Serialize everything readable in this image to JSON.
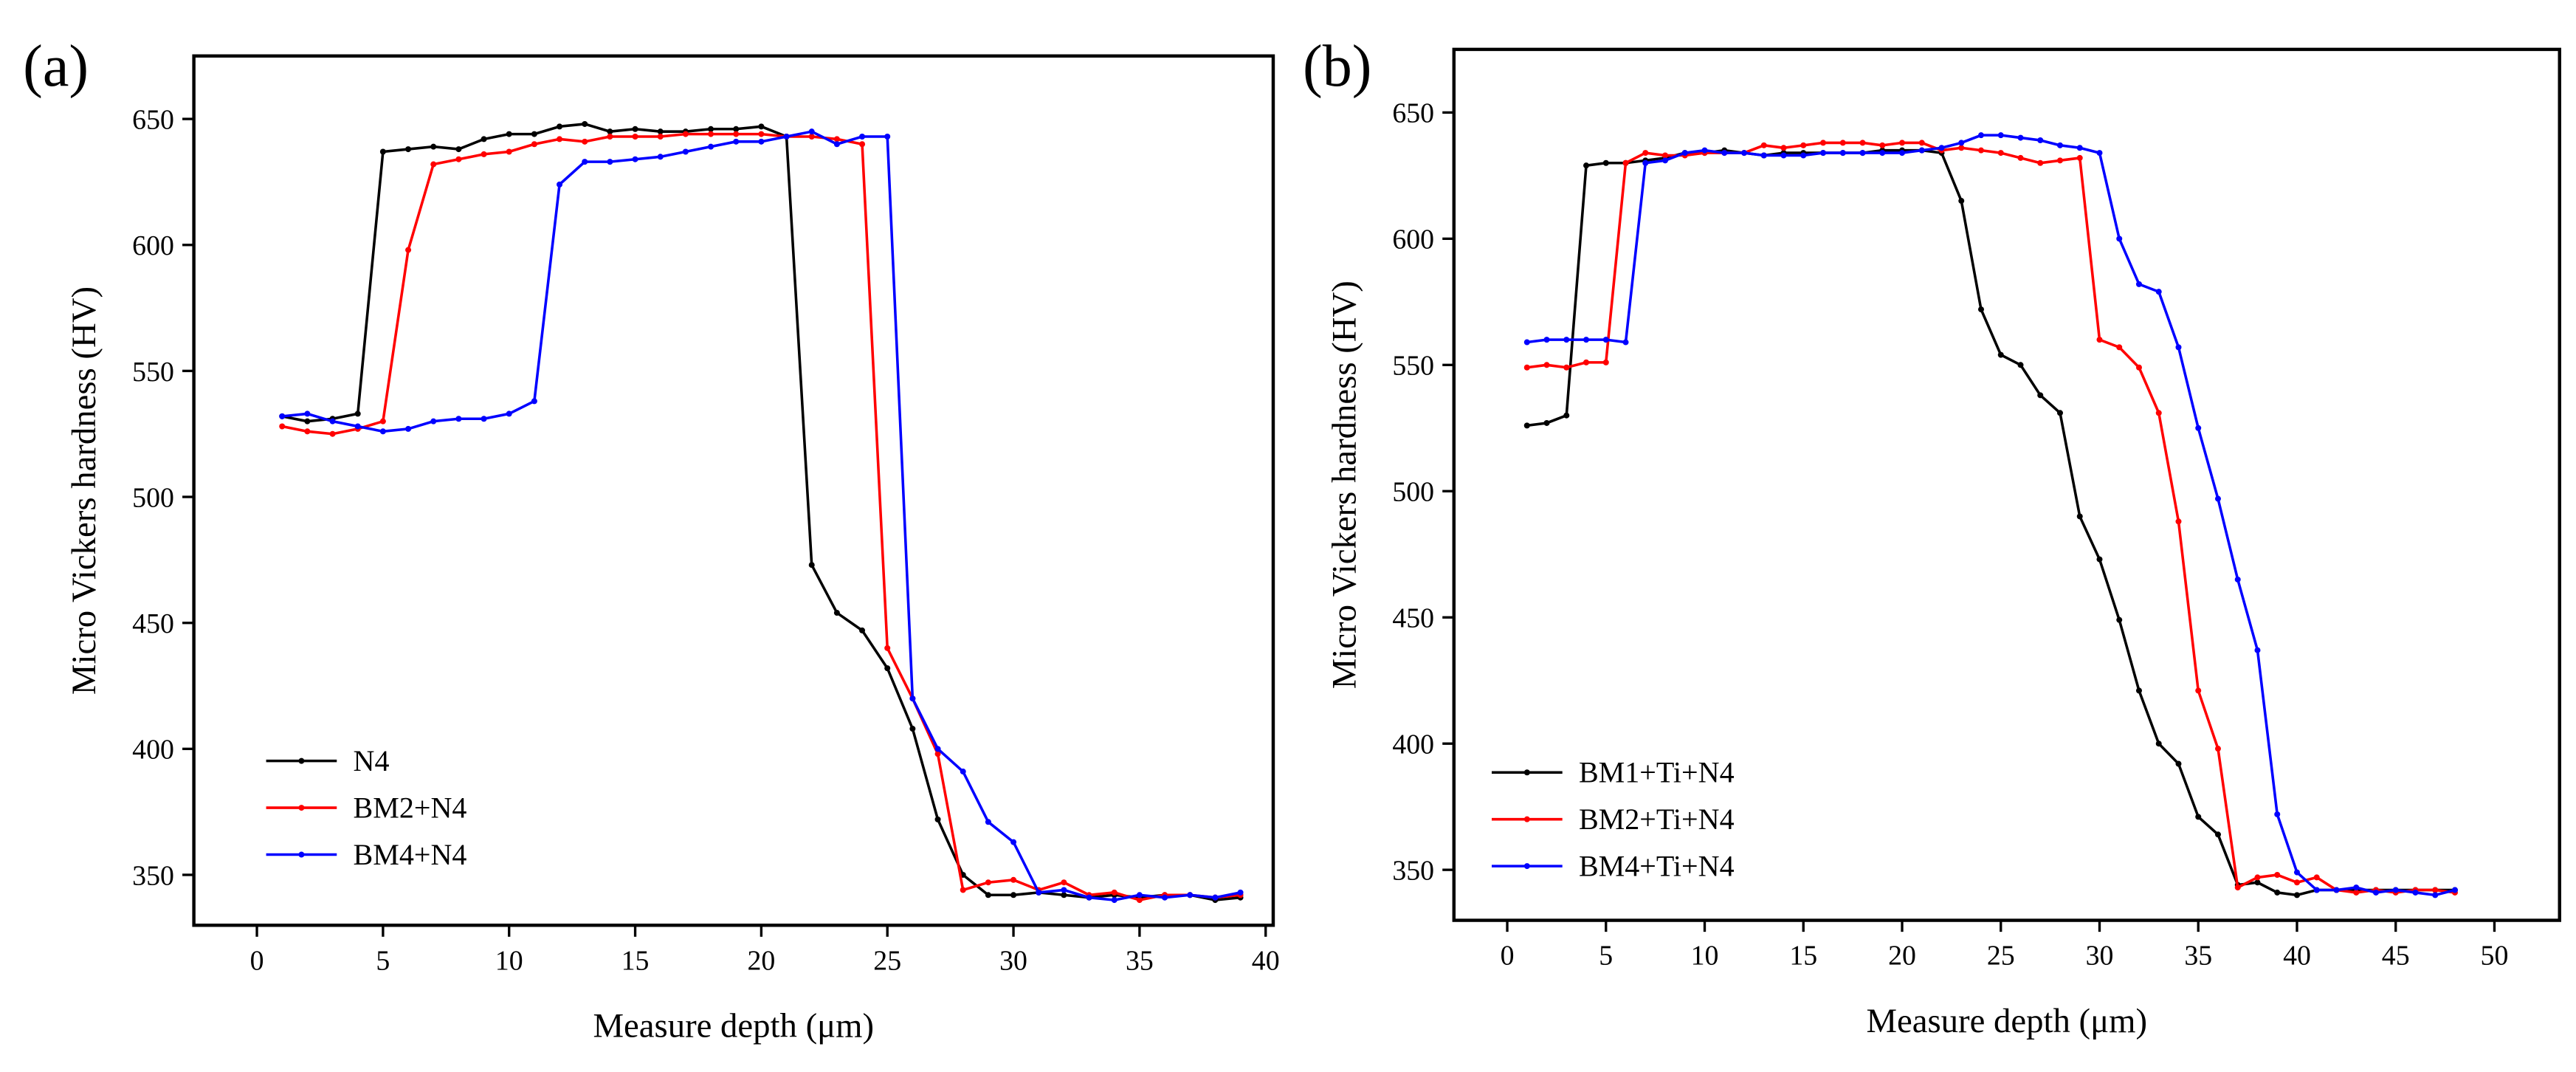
{
  "chart_data": [
    {
      "type": "line",
      "panel_label": "(a)",
      "x_label": "Measure depth (μm)",
      "y_label": "Micro Vickers hardness (HV)",
      "x": [
        1,
        2,
        3,
        4,
        5,
        6,
        7,
        8,
        9,
        10,
        11,
        12,
        13,
        14,
        15,
        16,
        17,
        18,
        19,
        20,
        21,
        22,
        23,
        24,
        25,
        26,
        27,
        28,
        29,
        30,
        31,
        32,
        33,
        34,
        35,
        36,
        37,
        38,
        39
      ],
      "xlim": [
        -2.5,
        40.3
      ],
      "ylim": [
        330,
        675
      ],
      "xticks": [
        0,
        5,
        10,
        15,
        20,
        25,
        30,
        35,
        40
      ],
      "yticks": [
        350,
        400,
        450,
        500,
        550,
        600,
        650
      ],
      "legend": "lower left",
      "series": [
        {
          "name": "N4",
          "color": "#000000",
          "values": [
            532,
            530,
            531,
            533,
            637,
            638,
            639,
            638,
            642,
            644,
            644,
            647,
            648,
            645,
            646,
            645,
            645,
            646,
            646,
            647,
            643,
            473,
            454,
            447,
            432,
            408,
            372,
            350,
            342,
            342,
            343,
            342,
            341,
            342,
            341,
            342,
            342,
            340,
            341
          ]
        },
        {
          "name": "BM2+N4",
          "color": "#ff0000",
          "values": [
            528,
            526,
            525,
            527,
            530,
            598,
            632,
            634,
            636,
            637,
            640,
            642,
            641,
            643,
            643,
            643,
            644,
            644,
            644,
            644,
            643,
            643,
            642,
            640,
            440,
            420,
            398,
            344,
            347,
            348,
            344,
            347,
            342,
            343,
            340,
            342,
            342,
            341,
            342
          ]
        },
        {
          "name": "BM4+N4",
          "color": "#0000ff",
          "values": [
            532,
            533,
            530,
            528,
            526,
            527,
            530,
            531,
            531,
            533,
            538,
            624,
            633,
            633,
            634,
            635,
            637,
            639,
            641,
            641,
            643,
            645,
            640,
            643,
            643,
            420,
            400,
            391,
            371,
            363,
            343,
            344,
            341,
            340,
            342,
            341,
            342,
            341,
            343
          ]
        }
      ]
    },
    {
      "type": "line",
      "panel_label": "(b)",
      "x_label": "Measure depth (μm)",
      "y_label": "Micro Vickers hardness (HV)",
      "x": [
        1,
        2,
        3,
        4,
        5,
        6,
        7,
        8,
        9,
        10,
        11,
        12,
        13,
        14,
        15,
        16,
        17,
        18,
        19,
        20,
        21,
        22,
        23,
        24,
        25,
        26,
        27,
        28,
        29,
        30,
        31,
        32,
        33,
        34,
        35,
        36,
        37,
        38,
        39,
        40,
        41,
        42,
        43,
        44,
        45,
        46,
        47,
        48
      ],
      "xlim": [
        -2.7,
        53.3
      ],
      "ylim": [
        330,
        675
      ],
      "xticks": [
        0,
        5,
        10,
        15,
        20,
        25,
        30,
        35,
        40,
        45,
        50
      ],
      "yticks": [
        350,
        400,
        450,
        500,
        550,
        600,
        650
      ],
      "legend": "lower left",
      "series": [
        {
          "name": "BM1+Ti+N4",
          "color": "#000000",
          "values": [
            526,
            527,
            530,
            629,
            630,
            630,
            631,
            632,
            634,
            634,
            635,
            634,
            633,
            634,
            634,
            634,
            634,
            634,
            635,
            635,
            635,
            634,
            615,
            572,
            554,
            550,
            538,
            531,
            490,
            473,
            449,
            421,
            400,
            392,
            371,
            364,
            344,
            345,
            341,
            340,
            342,
            342,
            342,
            342,
            342,
            342,
            342,
            342
          ]
        },
        {
          "name": "BM2+Ti+N4",
          "color": "#ff0000",
          "values": [
            549,
            550,
            549,
            551,
            551,
            630,
            634,
            633,
            633,
            634,
            634,
            634,
            637,
            636,
            637,
            638,
            638,
            638,
            637,
            638,
            638,
            635,
            636,
            635,
            634,
            632,
            630,
            631,
            632,
            560,
            557,
            549,
            531,
            488,
            421,
            398,
            343,
            347,
            348,
            345,
            347,
            342,
            341,
            342,
            341,
            342,
            342,
            341
          ]
        },
        {
          "name": "BM4+Ti+N4",
          "color": "#0000ff",
          "values": [
            559,
            560,
            560,
            560,
            560,
            559,
            630,
            631,
            634,
            635,
            634,
            634,
            633,
            633,
            633,
            634,
            634,
            634,
            634,
            634,
            635,
            636,
            638,
            641,
            641,
            640,
            639,
            637,
            636,
            634,
            600,
            582,
            579,
            557,
            525,
            497,
            465,
            437,
            372,
            349,
            342,
            342,
            343,
            341,
            342,
            341,
            340,
            342
          ]
        }
      ]
    }
  ]
}
